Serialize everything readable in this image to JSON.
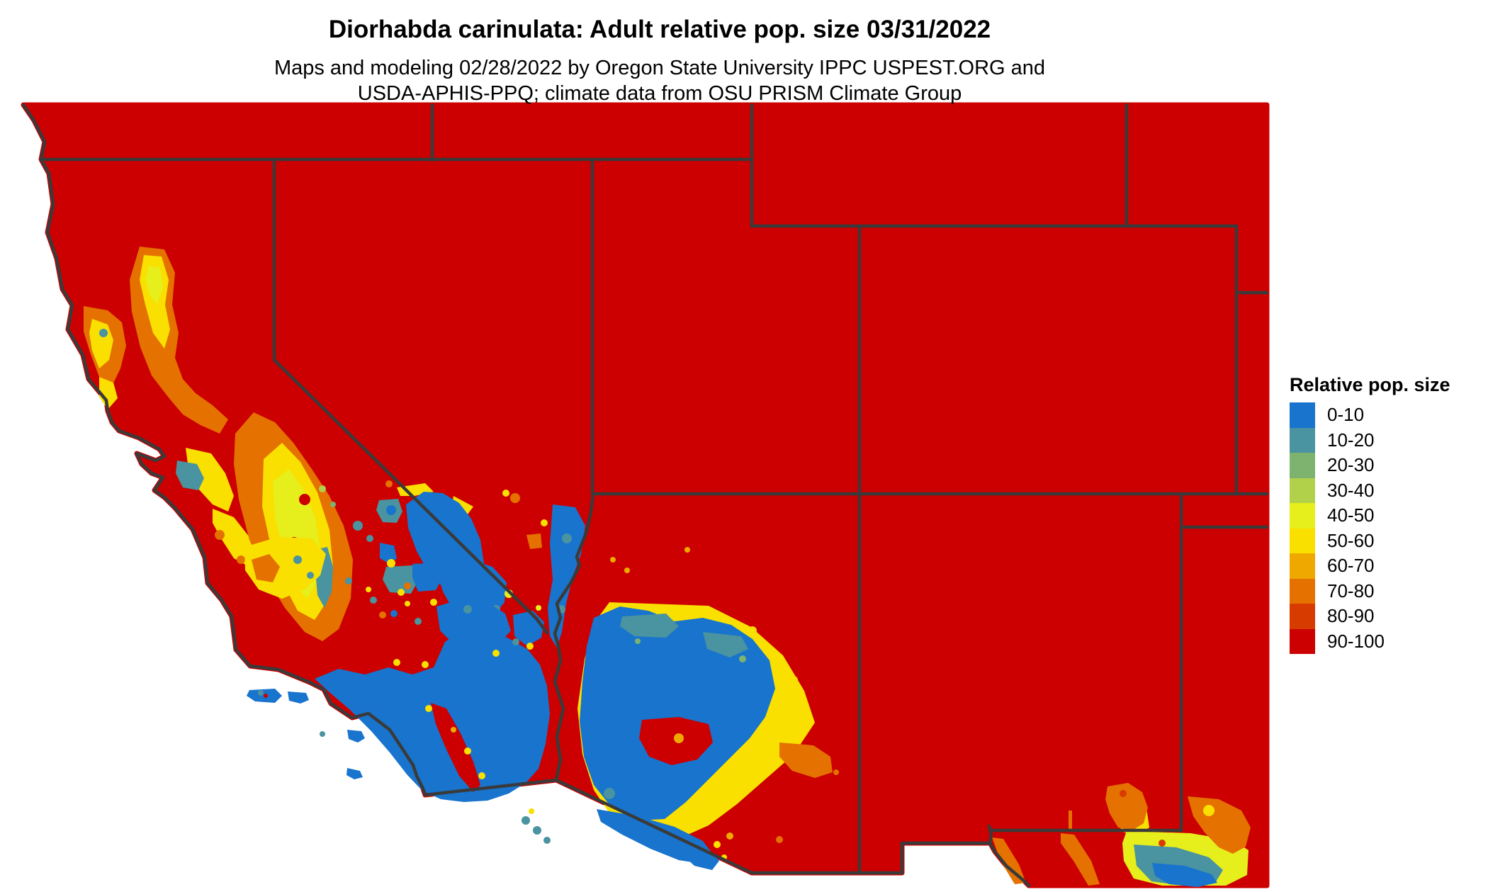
{
  "title": "Diorhabda carinulata: Adult relative pop. size 03/31/2022",
  "subtitle": {
    "line1": "Maps and modeling 02/28/2022 by Oregon State University IPPC USPEST.ORG and",
    "line2": "USDA-APHIS-PPQ; climate data from OSU PRISM Climate Group"
  },
  "legend": {
    "title": "Relative pop. size",
    "items": [
      {
        "label": "0-10",
        "color": "#1874cd"
      },
      {
        "label": "10-20",
        "color": "#4a93a0"
      },
      {
        "label": "20-30",
        "color": "#7db26f"
      },
      {
        "label": "30-40",
        "color": "#b2d14b"
      },
      {
        "label": "40-50",
        "color": "#e6ee1b"
      },
      {
        "label": "50-60",
        "color": "#f9e000"
      },
      {
        "label": "60-70",
        "color": "#eea800"
      },
      {
        "label": "70-80",
        "color": "#e47100"
      },
      {
        "label": "80-90",
        "color": "#d83b00"
      },
      {
        "label": "90-100",
        "color": "#cc0000"
      }
    ]
  },
  "map": {
    "depicts": "Southwestern United States raster map (CA, NV, UT, AZ, CO, NM, west TX) colored by relative population size",
    "dominant_color": "#cc0000",
    "border_color": "#3a3a3a",
    "ocean_color": "#ffffff"
  },
  "chart_data": {
    "type": "heatmap",
    "title": "Diorhabda carinulata: Adult relative pop. size 03/31/2022",
    "legend_title": "Relative pop. size",
    "categories": [
      "0-10",
      "10-20",
      "20-30",
      "30-40",
      "40-50",
      "50-60",
      "60-70",
      "70-80",
      "80-90",
      "90-100"
    ],
    "colors": [
      "#1874cd",
      "#4a93a0",
      "#7db26f",
      "#b2d14b",
      "#e6ee1b",
      "#f9e000",
      "#eea800",
      "#e47100",
      "#d83b00",
      "#cc0000"
    ],
    "legend_position": "right"
  }
}
